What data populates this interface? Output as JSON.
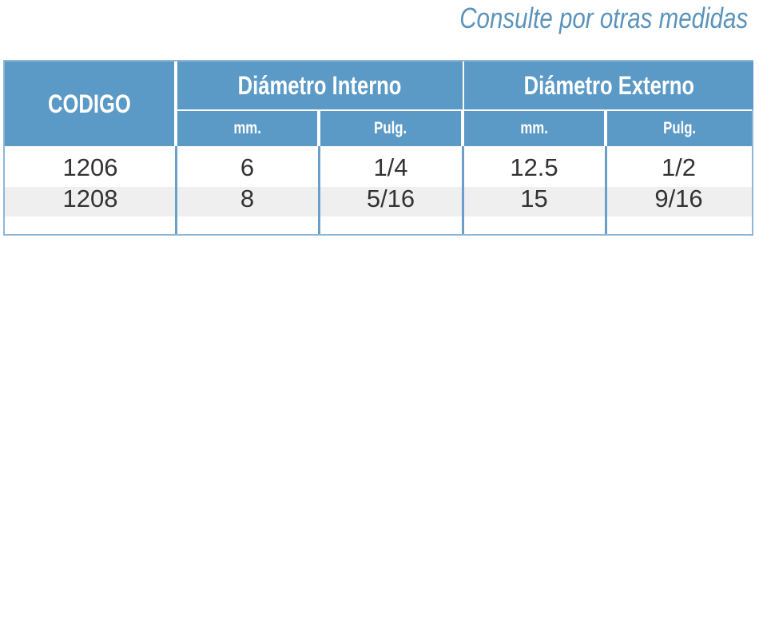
{
  "note": "Consulte por otras medidas",
  "table": {
    "header": {
      "codigo": "CODIGO",
      "groups": [
        "Diámetro Interno",
        "Diámetro Externo"
      ],
      "units": [
        "mm.",
        "Pulg.",
        "mm.",
        "Pulg."
      ]
    },
    "rows": [
      [
        "1206",
        "6",
        "1/4",
        "12.5",
        "1/2"
      ],
      [
        "1208",
        "8",
        "5/16",
        "15",
        "9/16"
      ]
    ]
  }
}
